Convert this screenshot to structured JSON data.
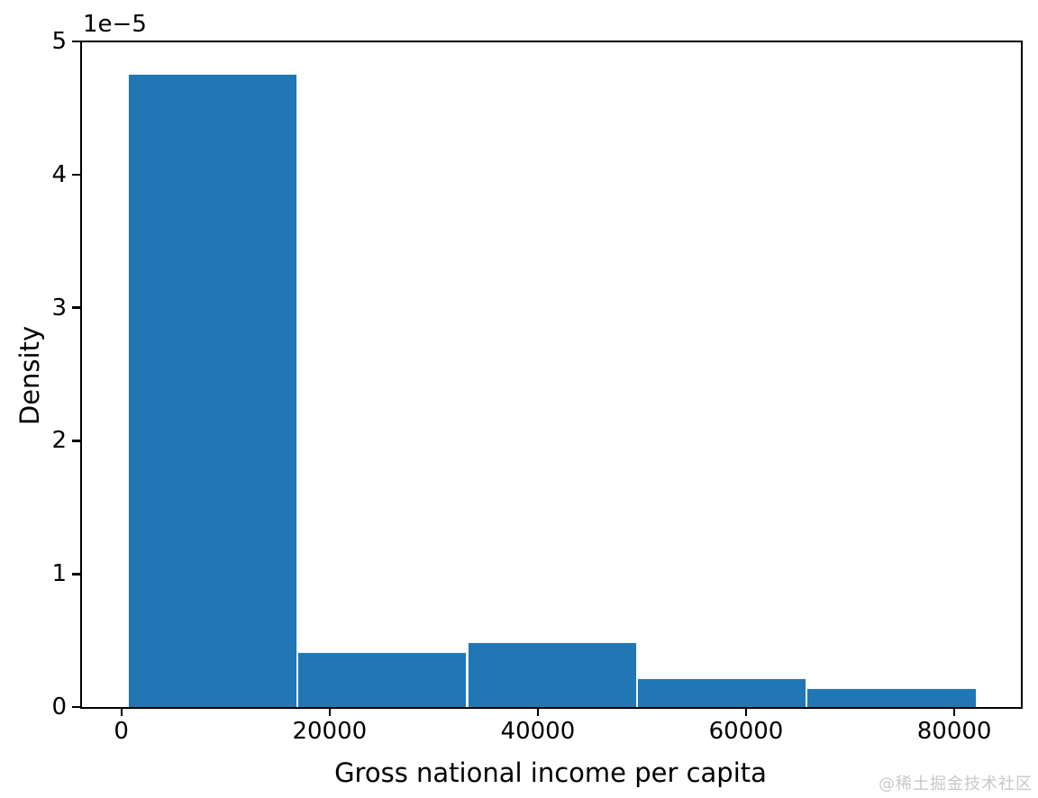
{
  "figure": {
    "background": "#ffffff",
    "watermark": "@稀土掘金技术社区",
    "watermark_color": "#c8c8c8"
  },
  "chart_data": {
    "type": "bar",
    "subtype": "histogram",
    "title": "",
    "xlabel": "Gross national income per capita",
    "ylabel": "Density",
    "y_offset_label": "1e−5",
    "bar_color": "#2077b4",
    "bar_edge_color": "#ffffff",
    "bin_edges": [
      600,
      16910,
      33220,
      49530,
      65840,
      82150
    ],
    "densities": [
      4.76e-05,
      4.1e-06,
      4.9e-06,
      2.2e-06,
      1.4e-06
    ],
    "densities_1e5": [
      4.76,
      0.41,
      0.49,
      0.22,
      0.14
    ],
    "xticks": [
      0,
      20000,
      40000,
      60000,
      80000
    ],
    "yticks_1e5": [
      0,
      1,
      2,
      3,
      4,
      5
    ],
    "xlim": [
      -3870,
      86400
    ],
    "ylim_1e5": [
      0,
      5
    ],
    "grid": false,
    "legend": null
  }
}
